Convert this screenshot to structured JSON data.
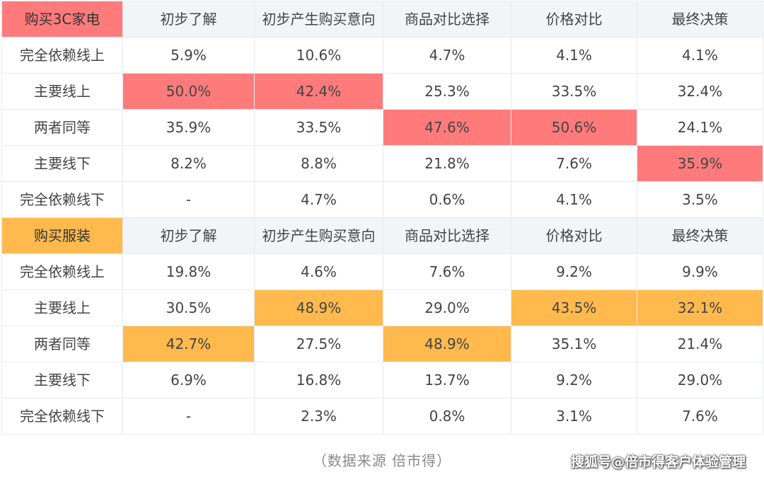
{
  "chart_data": {
    "type": "table",
    "tables": [
      {
        "title": "购买3C家电",
        "columns": [
          "初步了解",
          "初步产生购买意向",
          "商品对比选择",
          "价格对比",
          "最终决策"
        ],
        "rows": [
          {
            "label": "完全依赖线上",
            "values": [
              "5.9%",
              "10.6%",
              "4.7%",
              "4.1%",
              "4.1%"
            ]
          },
          {
            "label": "主要线上",
            "values": [
              "50.0%",
              "42.4%",
              "25.3%",
              "33.5%",
              "32.4%"
            ]
          },
          {
            "label": "两者同等",
            "values": [
              "35.9%",
              "33.5%",
              "47.6%",
              "50.6%",
              "24.1%"
            ]
          },
          {
            "label": "主要线下",
            "values": [
              "8.2%",
              "8.8%",
              "21.8%",
              "7.6%",
              "35.9%"
            ]
          },
          {
            "label": "完全依赖线下",
            "values": [
              "-",
              "4.7%",
              "0.6%",
              "4.1%",
              "3.5%"
            ]
          }
        ],
        "highlighted": [
          [
            1,
            0
          ],
          [
            1,
            1
          ],
          [
            2,
            2
          ],
          [
            2,
            3
          ],
          [
            3,
            4
          ]
        ],
        "highlight_color": "#ff7b7b"
      },
      {
        "title": "购买服装",
        "columns": [
          "初步了解",
          "初步产生购买意向",
          "商品对比选择",
          "价格对比",
          "最终决策"
        ],
        "rows": [
          {
            "label": "完全依赖线上",
            "values": [
              "19.8%",
              "4.6%",
              "7.6%",
              "9.2%",
              "9.9%"
            ]
          },
          {
            "label": "主要线上",
            "values": [
              "30.5%",
              "48.9%",
              "29.0%",
              "43.5%",
              "32.1%"
            ]
          },
          {
            "label": "两者同等",
            "values": [
              "42.7%",
              "27.5%",
              "48.9%",
              "35.1%",
              "21.4%"
            ]
          },
          {
            "label": "主要线下",
            "values": [
              "6.9%",
              "16.8%",
              "13.7%",
              "9.2%",
              "29.0%"
            ]
          },
          {
            "label": "完全依赖线下",
            "values": [
              "-",
              "2.3%",
              "0.8%",
              "3.1%",
              "7.6%"
            ]
          }
        ],
        "highlighted": [
          [
            2,
            0
          ],
          [
            1,
            1
          ],
          [
            2,
            2
          ],
          [
            1,
            3
          ],
          [
            1,
            4
          ]
        ],
        "highlight_color": "#ffb94d"
      }
    ]
  },
  "footer": {
    "source": "（数据来源  倍市得）",
    "watermark": "搜狐号@倍市得客户体验管理"
  },
  "colors": {
    "header_bg": "#f2f4f8",
    "border": "#e6e9ef",
    "text": "#444444"
  }
}
